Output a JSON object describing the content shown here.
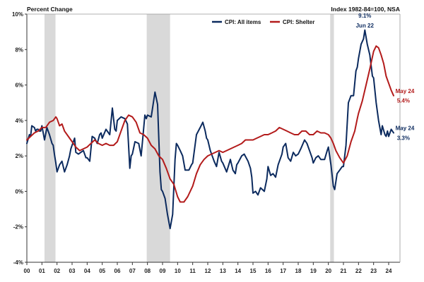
{
  "chart_data": {
    "type": "line",
    "ylabel": "Percent Change",
    "note": "Index 1982-84=100,  NSA",
    "y_ticks": [
      "-4%",
      "-2%",
      "0%",
      "2%",
      "4%",
      "6%",
      "8%",
      "10%"
    ],
    "ylim": [
      -4,
      10
    ],
    "x_ticks": [
      "00",
      "01",
      "02",
      "03",
      "04",
      "05",
      "06",
      "07",
      "08",
      "09",
      "10",
      "11",
      "12",
      "13",
      "14",
      "15",
      "16",
      "17",
      "18",
      "19",
      "20",
      "21",
      "22",
      "23",
      "24"
    ],
    "xlim": [
      2000.0,
      2024.75
    ],
    "grid": false,
    "legend": {
      "placement": "top-center"
    },
    "recessions": [
      {
        "start": 2001.17,
        "end": 2001.9
      },
      {
        "start": 2007.95,
        "end": 2009.5
      },
      {
        "start": 2020.12,
        "end": 2020.37
      }
    ],
    "series": [
      {
        "name": "CPI: All items",
        "color": "#0b2a5e",
        "points": [
          [
            2000.0,
            2.7
          ],
          [
            2000.17,
            3.2
          ],
          [
            2000.25,
            3.1
          ],
          [
            2000.33,
            3.7
          ],
          [
            2000.5,
            3.6
          ],
          [
            2000.58,
            3.4
          ],
          [
            2000.67,
            3.5
          ],
          [
            2000.75,
            3.5
          ],
          [
            2000.83,
            3.4
          ],
          [
            2000.92,
            3.4
          ],
          [
            2001.0,
            3.7
          ],
          [
            2001.17,
            2.9
          ],
          [
            2001.33,
            3.6
          ],
          [
            2001.5,
            3.2
          ],
          [
            2001.67,
            2.7
          ],
          [
            2001.75,
            2.6
          ],
          [
            2001.83,
            2.1
          ],
          [
            2001.92,
            1.6
          ],
          [
            2002.0,
            1.1
          ],
          [
            2002.17,
            1.5
          ],
          [
            2002.33,
            1.7
          ],
          [
            2002.5,
            1.1
          ],
          [
            2002.67,
            1.5
          ],
          [
            2002.83,
            2.0
          ],
          [
            2002.92,
            2.4
          ],
          [
            2003.0,
            2.6
          ],
          [
            2003.17,
            3.0
          ],
          [
            2003.25,
            2.2
          ],
          [
            2003.42,
            2.1
          ],
          [
            2003.58,
            2.2
          ],
          [
            2003.75,
            2.3
          ],
          [
            2003.92,
            1.9
          ],
          [
            2004.0,
            1.9
          ],
          [
            2004.17,
            1.7
          ],
          [
            2004.33,
            3.1
          ],
          [
            2004.5,
            3.0
          ],
          [
            2004.67,
            2.7
          ],
          [
            2004.83,
            3.2
          ],
          [
            2004.92,
            3.3
          ],
          [
            2005.0,
            3.0
          ],
          [
            2005.25,
            3.5
          ],
          [
            2005.5,
            3.2
          ],
          [
            2005.67,
            4.7
          ],
          [
            2005.83,
            3.5
          ],
          [
            2005.92,
            3.4
          ],
          [
            2006.0,
            4.0
          ],
          [
            2006.25,
            4.2
          ],
          [
            2006.5,
            4.1
          ],
          [
            2006.67,
            3.8
          ],
          [
            2006.83,
            1.3
          ],
          [
            2006.92,
            2.0
          ],
          [
            2007.0,
            2.1
          ],
          [
            2007.17,
            2.8
          ],
          [
            2007.42,
            2.7
          ],
          [
            2007.58,
            2.0
          ],
          [
            2007.67,
            2.8
          ],
          [
            2007.83,
            4.3
          ],
          [
            2007.92,
            4.1
          ],
          [
            2008.0,
            4.3
          ],
          [
            2008.25,
            4.2
          ],
          [
            2008.5,
            5.6
          ],
          [
            2008.67,
            4.9
          ],
          [
            2008.83,
            1.1
          ],
          [
            2008.92,
            0.1
          ],
          [
            2009.0,
            0.0
          ],
          [
            2009.17,
            -0.4
          ],
          [
            2009.33,
            -1.3
          ],
          [
            2009.5,
            -2.1
          ],
          [
            2009.67,
            -1.3
          ],
          [
            2009.83,
            1.8
          ],
          [
            2009.92,
            2.7
          ],
          [
            2010.0,
            2.6
          ],
          [
            2010.17,
            2.3
          ],
          [
            2010.33,
            2.0
          ],
          [
            2010.5,
            1.2
          ],
          [
            2010.75,
            1.2
          ],
          [
            2010.92,
            1.5
          ],
          [
            2011.0,
            1.6
          ],
          [
            2011.25,
            3.2
          ],
          [
            2011.5,
            3.6
          ],
          [
            2011.67,
            3.9
          ],
          [
            2011.83,
            3.4
          ],
          [
            2011.92,
            3.0
          ],
          [
            2012.0,
            2.9
          ],
          [
            2012.17,
            2.3
          ],
          [
            2012.42,
            1.7
          ],
          [
            2012.58,
            1.4
          ],
          [
            2012.75,
            2.2
          ],
          [
            2012.92,
            1.7
          ],
          [
            2013.0,
            1.6
          ],
          [
            2013.25,
            1.1
          ],
          [
            2013.5,
            1.8
          ],
          [
            2013.67,
            1.2
          ],
          [
            2013.83,
            1.0
          ],
          [
            2013.92,
            1.5
          ],
          [
            2014.0,
            1.6
          ],
          [
            2014.25,
            2.0
          ],
          [
            2014.42,
            2.1
          ],
          [
            2014.67,
            1.7
          ],
          [
            2014.83,
            1.3
          ],
          [
            2014.92,
            0.8
          ],
          [
            2015.0,
            -0.1
          ],
          [
            2015.17,
            0.0
          ],
          [
            2015.33,
            -0.2
          ],
          [
            2015.5,
            0.2
          ],
          [
            2015.75,
            0.0
          ],
          [
            2015.92,
            0.7
          ],
          [
            2016.0,
            1.4
          ],
          [
            2016.17,
            0.9
          ],
          [
            2016.33,
            1.0
          ],
          [
            2016.5,
            0.8
          ],
          [
            2016.67,
            1.5
          ],
          [
            2016.92,
            2.1
          ],
          [
            2017.0,
            2.5
          ],
          [
            2017.17,
            2.7
          ],
          [
            2017.33,
            1.9
          ],
          [
            2017.5,
            1.7
          ],
          [
            2017.67,
            2.2
          ],
          [
            2017.83,
            2.0
          ],
          [
            2018.0,
            2.1
          ],
          [
            2018.17,
            2.4
          ],
          [
            2018.42,
            2.9
          ],
          [
            2018.58,
            2.7
          ],
          [
            2018.75,
            2.3
          ],
          [
            2018.92,
            1.9
          ],
          [
            2019.0,
            1.6
          ],
          [
            2019.17,
            1.9
          ],
          [
            2019.33,
            2.0
          ],
          [
            2019.5,
            1.8
          ],
          [
            2019.75,
            1.8
          ],
          [
            2019.92,
            2.3
          ],
          [
            2020.0,
            2.5
          ],
          [
            2020.17,
            1.5
          ],
          [
            2020.33,
            0.3
          ],
          [
            2020.42,
            0.1
          ],
          [
            2020.58,
            1.0
          ],
          [
            2020.75,
            1.2
          ],
          [
            2020.92,
            1.4
          ],
          [
            2021.0,
            1.4
          ],
          [
            2021.17,
            2.6
          ],
          [
            2021.33,
            5.0
          ],
          [
            2021.5,
            5.4
          ],
          [
            2021.67,
            5.4
          ],
          [
            2021.83,
            6.8
          ],
          [
            2021.92,
            7.0
          ],
          [
            2022.0,
            7.5
          ],
          [
            2022.17,
            8.3
          ],
          [
            2022.33,
            8.6
          ],
          [
            2022.42,
            9.1
          ],
          [
            2022.58,
            8.3
          ],
          [
            2022.75,
            7.7
          ],
          [
            2022.92,
            6.5
          ],
          [
            2023.0,
            6.4
          ],
          [
            2023.17,
            5.0
          ],
          [
            2023.33,
            4.0
          ],
          [
            2023.5,
            3.2
          ],
          [
            2023.58,
            3.7
          ],
          [
            2023.75,
            3.2
          ],
          [
            2023.83,
            3.1
          ],
          [
            2023.92,
            3.4
          ],
          [
            2024.0,
            3.1
          ],
          [
            2024.17,
            3.5
          ],
          [
            2024.25,
            3.4
          ],
          [
            2024.33,
            3.3
          ]
        ]
      },
      {
        "name": "CPI: Shelter",
        "color": "#b31b1b",
        "points": [
          [
            2000.0,
            2.9
          ],
          [
            2000.25,
            3.1
          ],
          [
            2000.5,
            3.3
          ],
          [
            2000.75,
            3.4
          ],
          [
            2001.0,
            3.6
          ],
          [
            2001.25,
            3.6
          ],
          [
            2001.5,
            3.9
          ],
          [
            2001.75,
            4.0
          ],
          [
            2001.92,
            4.2
          ],
          [
            2002.0,
            4.1
          ],
          [
            2002.17,
            3.7
          ],
          [
            2002.33,
            3.8
          ],
          [
            2002.5,
            3.4
          ],
          [
            2002.75,
            3.1
          ],
          [
            2003.0,
            2.8
          ],
          [
            2003.25,
            2.5
          ],
          [
            2003.5,
            2.3
          ],
          [
            2003.75,
            2.4
          ],
          [
            2004.0,
            2.5
          ],
          [
            2004.25,
            2.7
          ],
          [
            2004.5,
            2.9
          ],
          [
            2004.75,
            2.7
          ],
          [
            2005.0,
            2.6
          ],
          [
            2005.25,
            2.7
          ],
          [
            2005.5,
            2.6
          ],
          [
            2005.75,
            2.6
          ],
          [
            2006.0,
            2.8
          ],
          [
            2006.25,
            3.4
          ],
          [
            2006.5,
            4.0
          ],
          [
            2006.75,
            4.3
          ],
          [
            2007.0,
            4.2
          ],
          [
            2007.25,
            3.9
          ],
          [
            2007.5,
            3.3
          ],
          [
            2007.75,
            3.2
          ],
          [
            2008.0,
            3.0
          ],
          [
            2008.25,
            2.6
          ],
          [
            2008.5,
            2.4
          ],
          [
            2008.75,
            2.0
          ],
          [
            2009.0,
            1.8
          ],
          [
            2009.25,
            1.3
          ],
          [
            2009.5,
            0.7
          ],
          [
            2009.75,
            0.4
          ],
          [
            2010.0,
            -0.3
          ],
          [
            2010.17,
            -0.6
          ],
          [
            2010.42,
            -0.6
          ],
          [
            2010.67,
            -0.3
          ],
          [
            2011.0,
            0.3
          ],
          [
            2011.25,
            1.0
          ],
          [
            2011.5,
            1.5
          ],
          [
            2011.75,
            1.8
          ],
          [
            2012.0,
            2.0
          ],
          [
            2012.25,
            2.1
          ],
          [
            2012.5,
            2.2
          ],
          [
            2012.75,
            2.3
          ],
          [
            2013.0,
            2.2
          ],
          [
            2013.25,
            2.3
          ],
          [
            2013.5,
            2.4
          ],
          [
            2013.75,
            2.5
          ],
          [
            2014.0,
            2.6
          ],
          [
            2014.25,
            2.7
          ],
          [
            2014.5,
            2.9
          ],
          [
            2014.75,
            2.9
          ],
          [
            2015.0,
            2.9
          ],
          [
            2015.25,
            3.0
          ],
          [
            2015.5,
            3.1
          ],
          [
            2015.75,
            3.2
          ],
          [
            2016.0,
            3.2
          ],
          [
            2016.25,
            3.3
          ],
          [
            2016.5,
            3.4
          ],
          [
            2016.75,
            3.6
          ],
          [
            2017.0,
            3.5
          ],
          [
            2017.25,
            3.4
          ],
          [
            2017.5,
            3.3
          ],
          [
            2017.75,
            3.2
          ],
          [
            2018.0,
            3.2
          ],
          [
            2018.25,
            3.4
          ],
          [
            2018.5,
            3.4
          ],
          [
            2018.75,
            3.2
          ],
          [
            2019.0,
            3.2
          ],
          [
            2019.25,
            3.4
          ],
          [
            2019.5,
            3.3
          ],
          [
            2019.75,
            3.3
          ],
          [
            2020.0,
            3.2
          ],
          [
            2020.17,
            3.0
          ],
          [
            2020.33,
            2.7
          ],
          [
            2020.5,
            2.3
          ],
          [
            2020.75,
            1.9
          ],
          [
            2021.0,
            1.6
          ],
          [
            2021.25,
            2.0
          ],
          [
            2021.5,
            2.8
          ],
          [
            2021.75,
            3.4
          ],
          [
            2021.92,
            4.1
          ],
          [
            2022.0,
            4.4
          ],
          [
            2022.25,
            5.1
          ],
          [
            2022.5,
            6.0
          ],
          [
            2022.75,
            6.9
          ],
          [
            2023.0,
            7.9
          ],
          [
            2023.17,
            8.2
          ],
          [
            2023.33,
            8.1
          ],
          [
            2023.5,
            7.7
          ],
          [
            2023.67,
            7.2
          ],
          [
            2023.83,
            6.5
          ],
          [
            2024.0,
            6.1
          ],
          [
            2024.17,
            5.7
          ],
          [
            2024.33,
            5.4
          ]
        ]
      }
    ],
    "annotations": [
      {
        "text": "9.1%",
        "x": 2022.42,
        "y": 9.8,
        "color": "#0b2a5e",
        "anchor": "middle"
      },
      {
        "text": "Jun 22",
        "x": 2022.42,
        "y": 9.25,
        "color": "#0b2a5e",
        "anchor": "middle"
      },
      {
        "text": "May 24",
        "x": 2024.45,
        "y": 5.55,
        "color": "#b31b1b",
        "anchor": "start"
      },
      {
        "text": "5.4%",
        "x": 2024.55,
        "y": 5.0,
        "color": "#b31b1b",
        "anchor": "start"
      },
      {
        "text": "May 24",
        "x": 2024.45,
        "y": 3.45,
        "color": "#0b2a5e",
        "anchor": "start"
      },
      {
        "text": "3.3%",
        "x": 2024.55,
        "y": 2.9,
        "color": "#0b2a5e",
        "anchor": "start"
      }
    ]
  }
}
